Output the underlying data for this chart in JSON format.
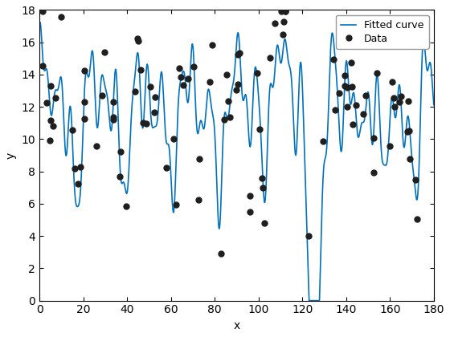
{
  "title": "",
  "xlabel": "x",
  "ylabel": "y",
  "xlim": [
    0,
    180
  ],
  "ylim": [
    0,
    18
  ],
  "xticks": [
    0,
    20,
    40,
    60,
    80,
    100,
    120,
    140,
    160,
    180
  ],
  "yticks": [
    0,
    2,
    4,
    6,
    8,
    10,
    12,
    14,
    16,
    18
  ],
  "data_color": "#1f1f1f",
  "curve_color": "#0072BD",
  "curve_linewidth": 1.2,
  "marker_size": 5,
  "legend_labels": [
    "Data",
    "Fitted curve"
  ],
  "background_color": "#ffffff",
  "figsize": [
    5.6,
    4.2
  ],
  "dpi": 100
}
